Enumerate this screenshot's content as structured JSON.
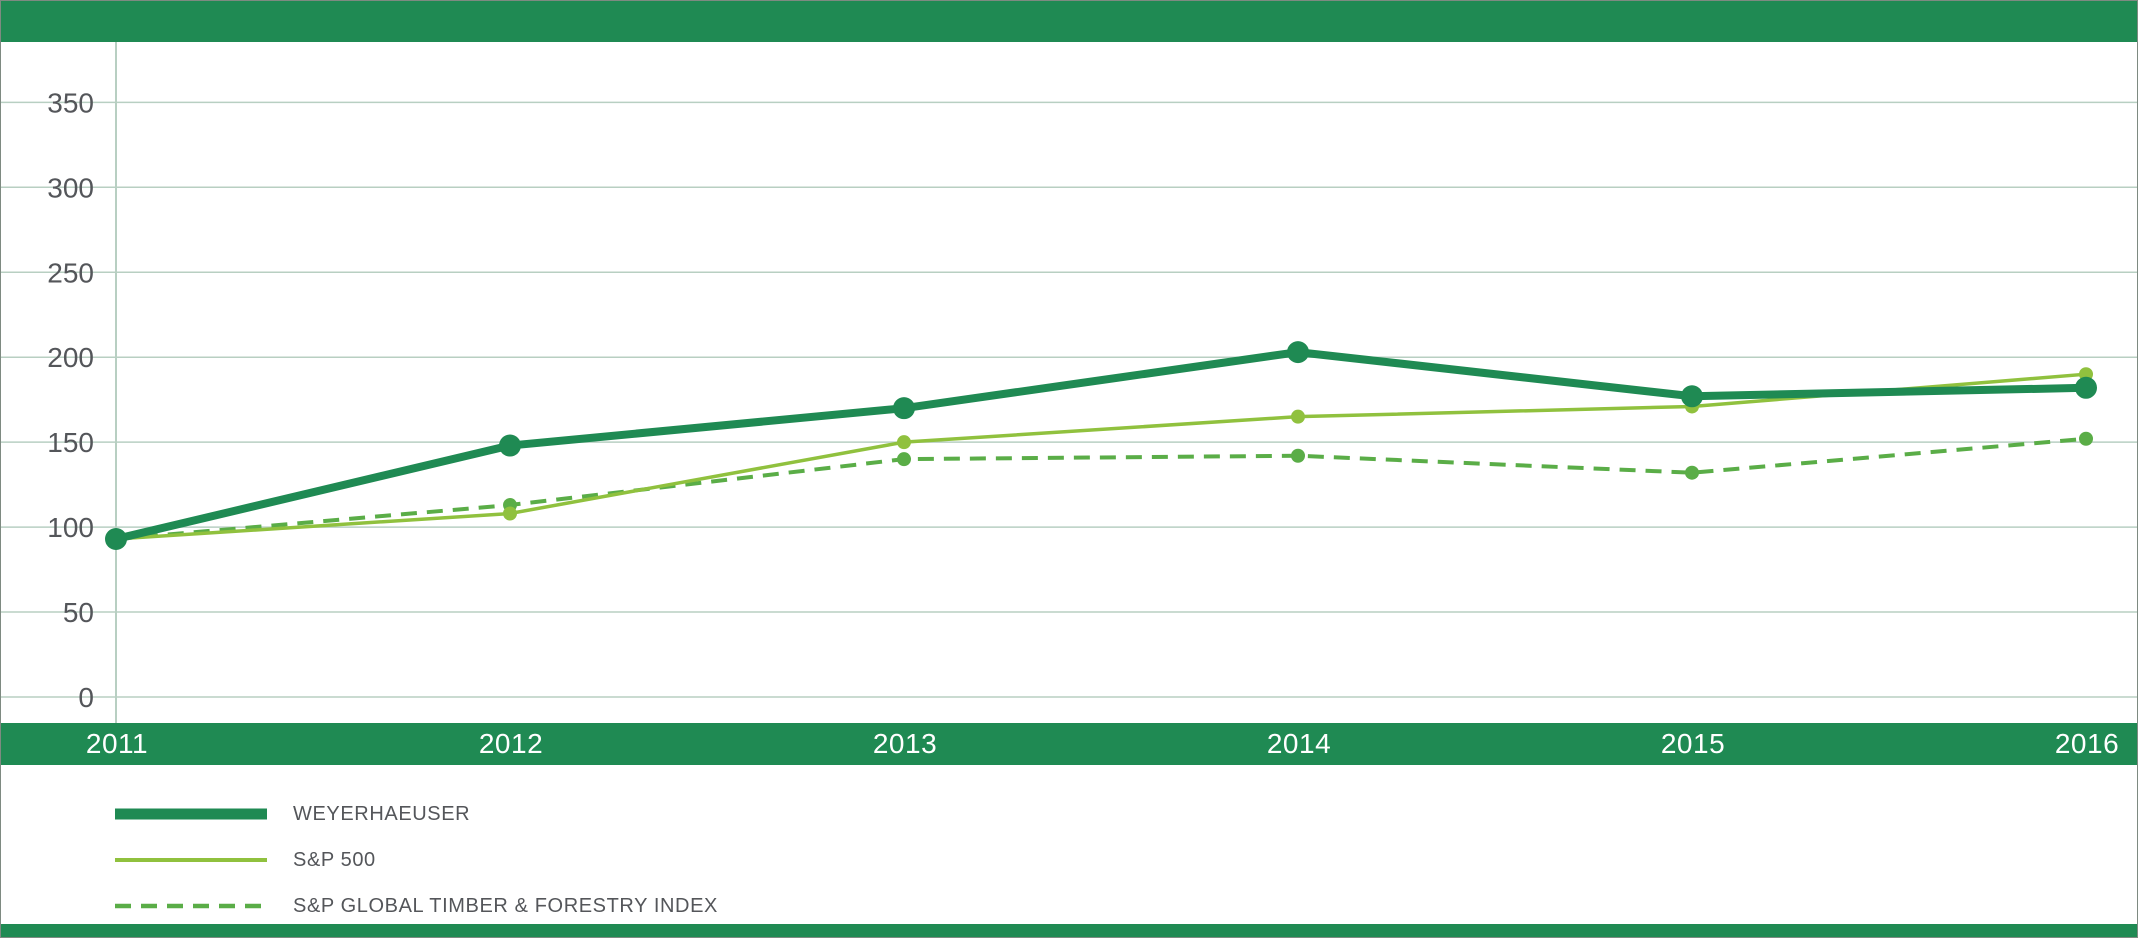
{
  "page": {
    "accent_green": "#1f8a53"
  },
  "chart_data": {
    "type": "line",
    "title": "",
    "categories": [
      "2011",
      "2012",
      "2013",
      "2014",
      "2015",
      "2016"
    ],
    "y_ticks": [
      0,
      50,
      100,
      150,
      200,
      250,
      300,
      350
    ],
    "ylim": [
      0,
      385
    ],
    "grid": true,
    "grid_color": "#b8cfc2",
    "tick_color": "#54565a",
    "legend_position": "bottom-left",
    "series": [
      {
        "name": "WEYERHAEUSER",
        "values": [
          93,
          148,
          170,
          203,
          177,
          182
        ],
        "color": "#1f8a53",
        "style": "solid",
        "width": 8,
        "dot": 11
      },
      {
        "name": "S&P 500",
        "values": [
          93,
          108,
          150,
          165,
          171,
          190
        ],
        "color": "#90c13e",
        "style": "solid",
        "width": 3.5,
        "dot": 7
      },
      {
        "name": "S&P GLOBAL TIMBER & FORESTRY INDEX",
        "values": [
          93,
          113,
          140,
          142,
          132,
          152
        ],
        "color": "#5aad47",
        "style": "dashed",
        "width": 4,
        "dot": 7
      }
    ]
  }
}
